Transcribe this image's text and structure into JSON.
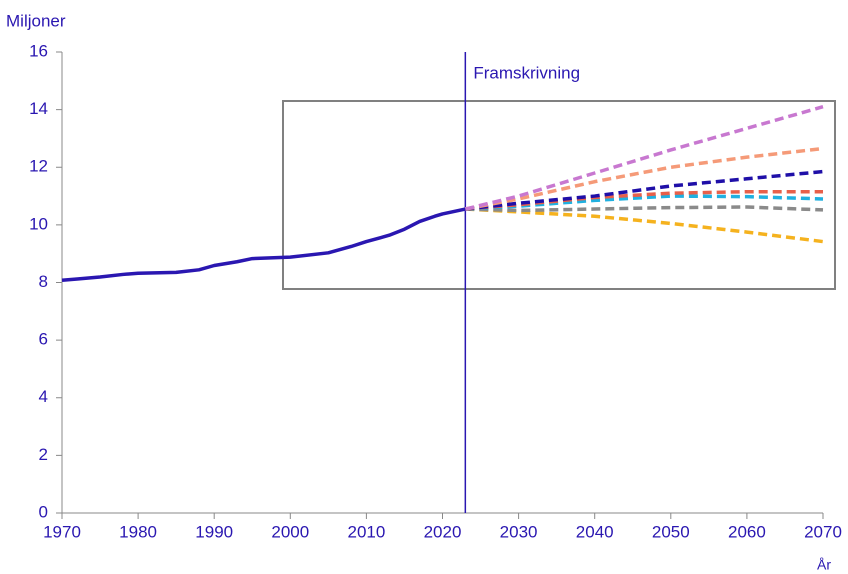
{
  "chart_data": {
    "type": "line",
    "ylabel": "Miljoner",
    "xlabel": "År",
    "annotation": {
      "text": "Framskrivning",
      "x": 2023
    },
    "xlim": [
      1970,
      2070
    ],
    "xticks": [
      1970,
      1980,
      1990,
      2000,
      2010,
      2020,
      2030,
      2040,
      2050,
      2060,
      2070
    ],
    "ylim": [
      0,
      16
    ],
    "yticks": [
      0,
      2,
      4,
      6,
      8,
      10,
      12,
      14,
      16
    ],
    "grid": false,
    "series": [
      {
        "color": "#2a17b1",
        "dashed": false,
        "x": [
          1970,
          1972,
          1975,
          1978,
          1980,
          1985,
          1988,
          1990,
          1993,
          1995,
          2000,
          2005,
          2008,
          2010,
          2013,
          2015,
          2017,
          2019,
          2020,
          2023
        ],
        "values": [
          8.08,
          8.12,
          8.19,
          8.28,
          8.32,
          8.35,
          8.44,
          8.59,
          8.72,
          8.83,
          8.88,
          9.03,
          9.25,
          9.42,
          9.64,
          9.85,
          10.12,
          10.3,
          10.38,
          10.55
        ]
      },
      {
        "color": "#c878d0",
        "dashed": true,
        "x": [
          2023,
          2030,
          2040,
          2050,
          2060,
          2070
        ],
        "values": [
          10.55,
          11.0,
          11.8,
          12.6,
          13.35,
          14.1
        ]
      },
      {
        "color": "#f59a78",
        "dashed": true,
        "x": [
          2023,
          2030,
          2040,
          2050,
          2060,
          2070
        ],
        "values": [
          10.55,
          10.9,
          11.5,
          12.0,
          12.35,
          12.65
        ]
      },
      {
        "color": "#1f0fa8",
        "dashed": true,
        "x": [
          2023,
          2030,
          2040,
          2050,
          2060,
          2070
        ],
        "values": [
          10.55,
          10.75,
          11.0,
          11.35,
          11.6,
          11.85
        ]
      },
      {
        "color": "#e8604a",
        "dashed": true,
        "x": [
          2023,
          2030,
          2040,
          2050,
          2060,
          2070
        ],
        "values": [
          10.55,
          10.7,
          10.95,
          11.1,
          11.15,
          11.15
        ]
      },
      {
        "color": "#20b0e0",
        "dashed": true,
        "x": [
          2023,
          2030,
          2040,
          2050,
          2060,
          2070
        ],
        "values": [
          10.55,
          10.65,
          10.85,
          11.0,
          10.98,
          10.9
        ]
      },
      {
        "color": "#8a8a8a",
        "dashed": true,
        "x": [
          2023,
          2030,
          2040,
          2050,
          2060,
          2070
        ],
        "values": [
          10.55,
          10.5,
          10.55,
          10.6,
          10.62,
          10.52
        ]
      },
      {
        "color": "#f5b21e",
        "dashed": true,
        "x": [
          2023,
          2030,
          2040,
          2050,
          2060,
          2070
        ],
        "values": [
          10.55,
          10.45,
          10.3,
          10.05,
          9.75,
          9.42
        ]
      }
    ]
  }
}
